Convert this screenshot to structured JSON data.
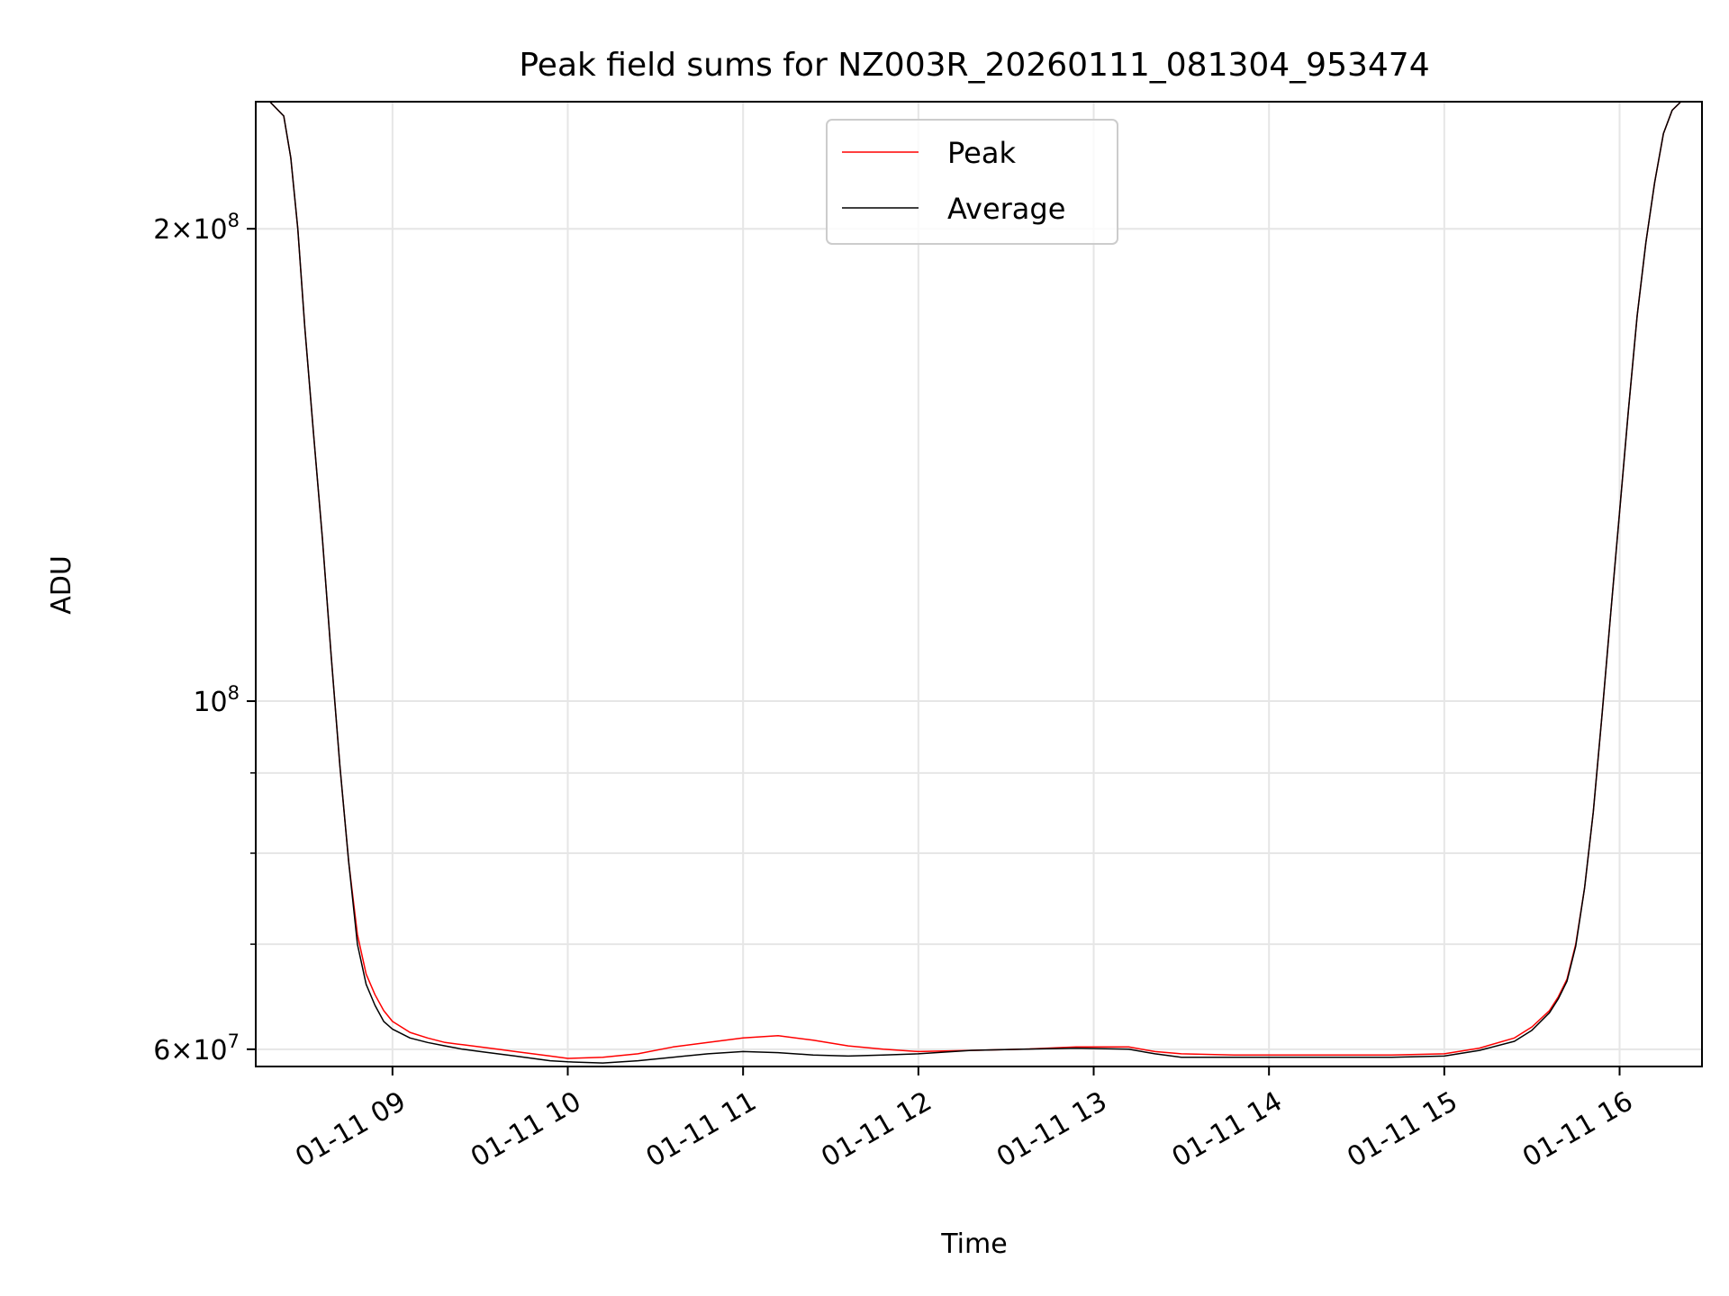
{
  "chart_data": {
    "type": "line",
    "title": "Peak field sums for NZ003R_20260111_081304_953474",
    "xlabel": "Time",
    "ylabel": "ADU",
    "y_scale": "log",
    "ylim": [
      58500000,
      241000000
    ],
    "xlim": [
      8.22,
      16.47
    ],
    "x_unit": "hours on 2026-01-11",
    "grid": true,
    "legend": "upper center",
    "x_ticks": [
      {
        "value": 9,
        "label": "01-11 09"
      },
      {
        "value": 10,
        "label": "01-11 10"
      },
      {
        "value": 11,
        "label": "01-11 11"
      },
      {
        "value": 12,
        "label": "01-11 12"
      },
      {
        "value": 13,
        "label": "01-11 13"
      },
      {
        "value": 14,
        "label": "01-11 14"
      },
      {
        "value": 15,
        "label": "01-11 15"
      },
      {
        "value": 16,
        "label": "01-11 16"
      }
    ],
    "y_major_ticks": [
      {
        "value": 60000000,
        "mantissa": "6",
        "exponent": "7"
      },
      {
        "value": 100000000,
        "mantissa": "",
        "exponent": "8"
      },
      {
        "value": 200000000,
        "mantissa": "2",
        "exponent": "8"
      }
    ],
    "y_minor_gridlines": [
      70000000,
      80000000,
      90000000
    ],
    "series": [
      {
        "name": "Peak",
        "color": "#ff0000",
        "x": [
          8.22,
          8.3,
          8.38,
          8.42,
          8.46,
          8.5,
          8.55,
          8.6,
          8.65,
          8.7,
          8.75,
          8.8,
          8.85,
          8.9,
          8.95,
          9.0,
          9.1,
          9.2,
          9.3,
          9.4,
          9.5,
          9.6,
          9.7,
          9.8,
          9.9,
          10.0,
          10.2,
          10.4,
          10.6,
          10.8,
          11.0,
          11.2,
          11.4,
          11.6,
          11.8,
          12.0,
          12.3,
          12.6,
          12.9,
          13.2,
          13.35,
          13.5,
          13.8,
          14.1,
          14.4,
          14.7,
          15.0,
          15.2,
          15.4,
          15.5,
          15.6,
          15.65,
          15.7,
          15.75,
          15.8,
          15.85,
          15.9,
          15.95,
          16.0,
          16.05,
          16.1,
          16.15,
          16.2,
          16.25,
          16.3,
          16.35,
          16.47
        ],
        "values": [
          241000000,
          241000000,
          236000000,
          222000000,
          200000000,
          173000000,
          148000000,
          127000000,
          107000000,
          91000000,
          79000000,
          71000000,
          67000000,
          65000000,
          63500000,
          62500000,
          61500000,
          61000000,
          60600000,
          60400000,
          60200000,
          60000000,
          59800000,
          59600000,
          59400000,
          59200000,
          59300000,
          59600000,
          60200000,
          60600000,
          61000000,
          61200000,
          60800000,
          60300000,
          60000000,
          59800000,
          59900000,
          60000000,
          60200000,
          60200000,
          59800000,
          59600000,
          59500000,
          59500000,
          59500000,
          59500000,
          59600000,
          60100000,
          61000000,
          62000000,
          63500000,
          64800000,
          66500000,
          70000000,
          76000000,
          85000000,
          98000000,
          114000000,
          132000000,
          153000000,
          176000000,
          196000000,
          214000000,
          230000000,
          238000000,
          241000000,
          241000000
        ]
      },
      {
        "name": "Average",
        "color": "#000000",
        "x": [
          8.22,
          8.3,
          8.38,
          8.42,
          8.46,
          8.5,
          8.55,
          8.6,
          8.65,
          8.7,
          8.75,
          8.8,
          8.85,
          8.9,
          8.95,
          9.0,
          9.1,
          9.2,
          9.3,
          9.4,
          9.5,
          9.6,
          9.7,
          9.8,
          9.9,
          10.0,
          10.2,
          10.4,
          10.6,
          10.8,
          11.0,
          11.2,
          11.4,
          11.6,
          11.8,
          12.0,
          12.3,
          12.6,
          12.9,
          13.2,
          13.35,
          13.5,
          13.8,
          14.1,
          14.4,
          14.7,
          15.0,
          15.2,
          15.4,
          15.5,
          15.6,
          15.65,
          15.7,
          15.75,
          15.8,
          15.85,
          15.9,
          15.95,
          16.0,
          16.05,
          16.1,
          16.15,
          16.2,
          16.25,
          16.3,
          16.35,
          16.47
        ],
        "values": [
          241000000,
          241000000,
          236000000,
          222000000,
          200000000,
          173000000,
          148000000,
          127000000,
          107000000,
          91000000,
          79000000,
          70000000,
          66000000,
          64000000,
          62500000,
          61800000,
          61000000,
          60600000,
          60300000,
          60000000,
          59800000,
          59600000,
          59400000,
          59200000,
          59000000,
          58900000,
          58800000,
          59000000,
          59300000,
          59600000,
          59800000,
          59700000,
          59500000,
          59400000,
          59500000,
          59600000,
          59900000,
          60000000,
          60100000,
          60000000,
          59600000,
          59300000,
          59300000,
          59300000,
          59300000,
          59300000,
          59400000,
          59900000,
          60700000,
          61700000,
          63300000,
          64600000,
          66300000,
          69800000,
          76000000,
          85000000,
          98000000,
          114000000,
          132000000,
          153000000,
          176000000,
          196000000,
          214000000,
          230000000,
          238000000,
          241000000,
          241000000
        ]
      }
    ]
  }
}
